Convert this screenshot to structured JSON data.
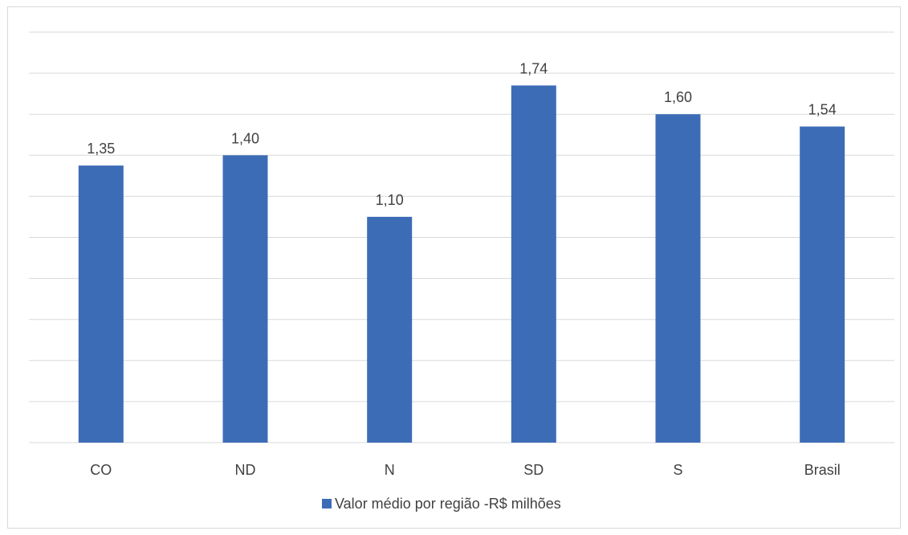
{
  "chart_data": {
    "type": "bar",
    "categories": [
      "CO",
      "ND",
      "N",
      "SD",
      "S",
      "Brasil"
    ],
    "series": [
      {
        "name": "Valor médio por região -R$ milhões",
        "values": [
          1.35,
          1.4,
          1.1,
          1.74,
          1.6,
          1.54
        ],
        "labels": [
          "1,35",
          "1,40",
          "1,10",
          "1,74",
          "1,60",
          "1,54"
        ],
        "color": "#3d6cb7"
      }
    ],
    "ylim": [
      0,
      2.0
    ],
    "y_gridlines": 10,
    "grid": true,
    "legend_position": "bottom",
    "title": "",
    "xlabel": "",
    "ylabel": ""
  }
}
